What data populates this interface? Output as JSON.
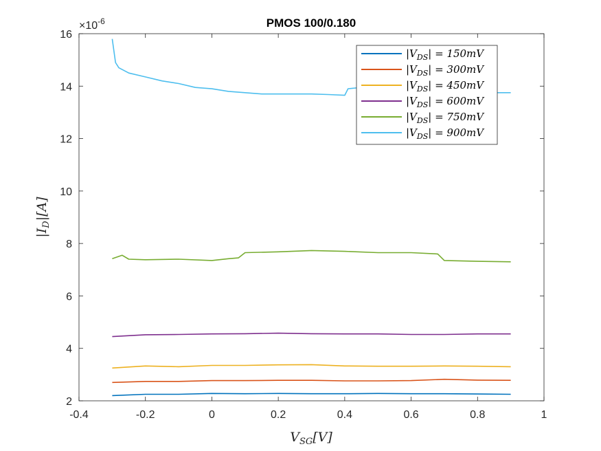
{
  "chart_data": {
    "type": "line",
    "title": "PMOS 100/0.180",
    "xlabel": "V_SG[V]",
    "ylabel": "|I_D|[A]",
    "xlim": [
      -0.4,
      1.0
    ],
    "ylim": [
      2,
      16
    ],
    "y_exponent_label": "×10^-6",
    "y_multiplier": 1e-06,
    "x_ticks": [
      -0.4,
      -0.2,
      0,
      0.2,
      0.4,
      0.6,
      0.8,
      1
    ],
    "x_tick_labels": [
      "-0.4",
      "-0.2",
      "0",
      "0.2",
      "0.4",
      "0.6",
      "0.8",
      "1"
    ],
    "y_ticks": [
      2,
      4,
      6,
      8,
      10,
      12,
      14,
      16
    ],
    "y_tick_labels": [
      "2",
      "4",
      "6",
      "8",
      "10",
      "12",
      "14",
      "16"
    ],
    "grid": false,
    "legend_position": "top-right",
    "series": [
      {
        "name": "|V_DS| = 150mV",
        "color": "#0072BD",
        "x": [
          -0.3,
          -0.2,
          -0.1,
          0.0,
          0.1,
          0.2,
          0.3,
          0.4,
          0.5,
          0.6,
          0.7,
          0.8,
          0.9
        ],
        "y": [
          2.2,
          2.25,
          2.25,
          2.28,
          2.27,
          2.28,
          2.27,
          2.27,
          2.28,
          2.27,
          2.27,
          2.26,
          2.25
        ]
      },
      {
        "name": "|V_DS| = 300mV",
        "color": "#D95319",
        "x": [
          -0.3,
          -0.2,
          -0.1,
          0.0,
          0.1,
          0.2,
          0.3,
          0.4,
          0.5,
          0.6,
          0.7,
          0.8,
          0.9
        ],
        "y": [
          2.7,
          2.74,
          2.74,
          2.77,
          2.77,
          2.78,
          2.78,
          2.76,
          2.76,
          2.77,
          2.82,
          2.79,
          2.78
        ]
      },
      {
        "name": "|V_DS| = 450mV",
        "color": "#EDB120",
        "x": [
          -0.3,
          -0.2,
          -0.1,
          0.0,
          0.1,
          0.2,
          0.3,
          0.4,
          0.5,
          0.6,
          0.7,
          0.8,
          0.9
        ],
        "y": [
          3.25,
          3.33,
          3.3,
          3.35,
          3.35,
          3.37,
          3.38,
          3.33,
          3.32,
          3.32,
          3.33,
          3.32,
          3.3
        ]
      },
      {
        "name": "|V_DS| = 600mV",
        "color": "#7E2F8E",
        "x": [
          -0.3,
          -0.2,
          -0.1,
          0.0,
          0.1,
          0.2,
          0.3,
          0.4,
          0.5,
          0.6,
          0.7,
          0.8,
          0.9
        ],
        "y": [
          4.45,
          4.52,
          4.53,
          4.55,
          4.56,
          4.58,
          4.56,
          4.55,
          4.55,
          4.53,
          4.53,
          4.55,
          4.55
        ]
      },
      {
        "name": "|V_DS| = 750mV",
        "color": "#77AC30",
        "x": [
          -0.3,
          -0.27,
          -0.25,
          -0.2,
          -0.1,
          0.0,
          0.05,
          0.08,
          0.1,
          0.2,
          0.3,
          0.4,
          0.5,
          0.6,
          0.68,
          0.7,
          0.8,
          0.9
        ],
        "y": [
          7.42,
          7.55,
          7.4,
          7.38,
          7.4,
          7.35,
          7.42,
          7.45,
          7.65,
          7.68,
          7.73,
          7.7,
          7.65,
          7.65,
          7.6,
          7.35,
          7.32,
          7.3
        ]
      },
      {
        "name": "|V_DS| = 900mV",
        "color": "#4DBEEE",
        "x": [
          -0.3,
          -0.29,
          -0.28,
          -0.25,
          -0.2,
          -0.15,
          -0.1,
          -0.05,
          0.0,
          0.05,
          0.1,
          0.15,
          0.2,
          0.3,
          0.35,
          0.4,
          0.41,
          0.45,
          0.5,
          0.6,
          0.65,
          0.7,
          0.75,
          0.8,
          0.85,
          0.9
        ],
        "y": [
          15.8,
          14.9,
          14.7,
          14.5,
          14.35,
          14.2,
          14.1,
          13.95,
          13.9,
          13.8,
          13.75,
          13.7,
          13.7,
          13.7,
          13.68,
          13.65,
          13.9,
          13.95,
          13.85,
          13.85,
          13.95,
          13.9,
          13.95,
          13.8,
          13.75,
          13.75
        ]
      }
    ]
  }
}
